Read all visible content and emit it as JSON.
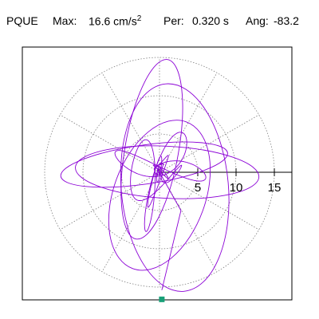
{
  "header": {
    "station": "PQUE",
    "max_label": "Max:",
    "max_value": "16.6 cm/s",
    "max_exp": "2",
    "per_label": "Per:",
    "per_value": "0.320 s",
    "ang_label": "Ang:",
    "ang_value": "-83.2"
  },
  "colors": {
    "trace": "#8b00d6",
    "marker": "#18a078",
    "grid": "#808080",
    "frame": "#000000"
  },
  "chart_data": {
    "type": "scatter",
    "title": "PQUE",
    "ticks": [
      "5",
      "10",
      "15"
    ],
    "tick_values": [
      5,
      10,
      15
    ],
    "rmax": 15,
    "grid": true,
    "marker": {
      "x": 0.3,
      "y": -16.6
    }
  }
}
